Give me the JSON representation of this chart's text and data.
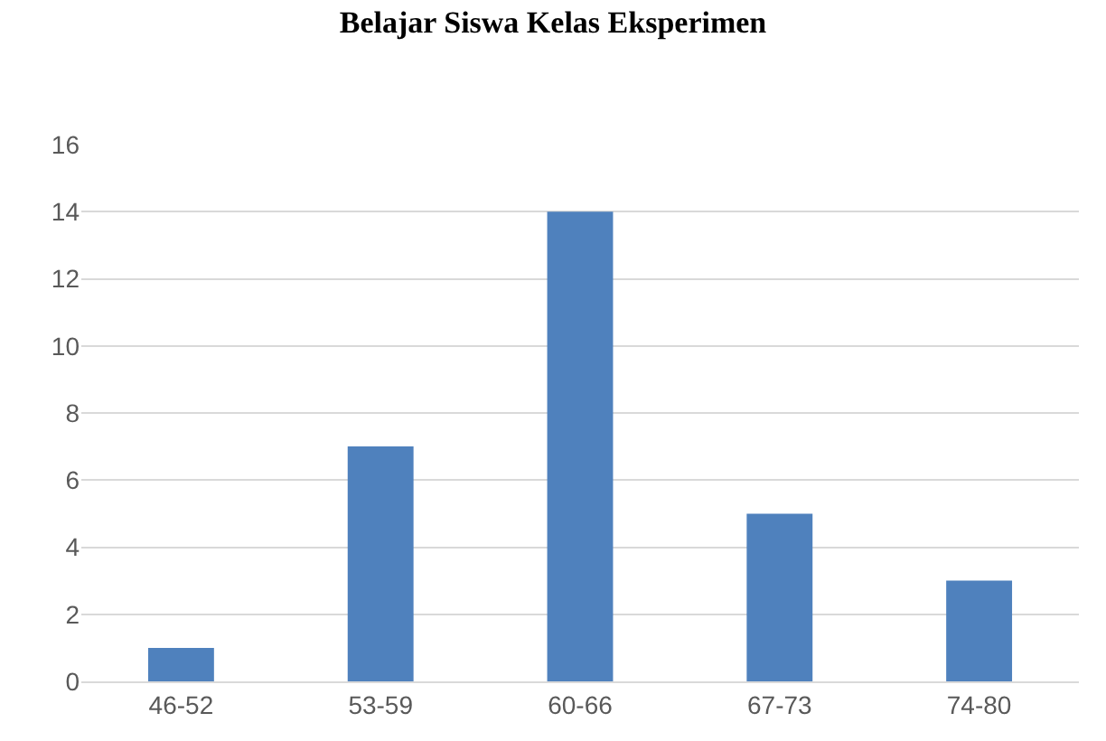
{
  "chart_data": {
    "type": "bar",
    "title": "Belajar Siswa Kelas Eksperimen",
    "categories": [
      "46-52",
      "53-59",
      "60-66",
      "67-73",
      "74-80"
    ],
    "values": [
      1,
      7,
      14,
      5,
      3
    ],
    "color": "#4f81bd",
    "ylim": [
      0,
      16
    ],
    "yticks": [
      0,
      2,
      4,
      6,
      8,
      10,
      12,
      14,
      16
    ],
    "grid": "y"
  }
}
